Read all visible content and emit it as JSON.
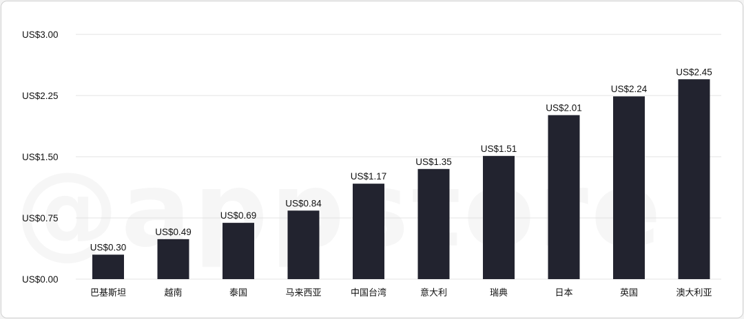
{
  "watermark": "@appstore",
  "chart_data": {
    "type": "bar",
    "categories": [
      "巴基斯坦",
      "越南",
      "泰国",
      "马来西亚",
      "中国台湾",
      "意大利",
      "瑞典",
      "日本",
      "英国",
      "澳大利亚"
    ],
    "values": [
      0.3,
      0.49,
      0.69,
      0.84,
      1.17,
      1.35,
      1.51,
      2.01,
      2.24,
      2.45
    ],
    "data_labels": [
      "US$0.30",
      "US$0.49",
      "US$0.69",
      "US$0.84",
      "US$1.17",
      "US$1.35",
      "US$1.51",
      "US$2.01",
      "US$2.24",
      "US$2.45"
    ],
    "y_ticks": [
      0,
      0.75,
      1.5,
      2.25,
      3.0
    ],
    "y_tick_labels": [
      "US$0.00",
      "US$0.75",
      "US$1.50",
      "US$2.25",
      "US$3.00"
    ],
    "ylim": [
      0,
      3.0
    ],
    "grid": true,
    "bar_color": "#22232f",
    "title": "",
    "xlabel": "",
    "ylabel": ""
  }
}
